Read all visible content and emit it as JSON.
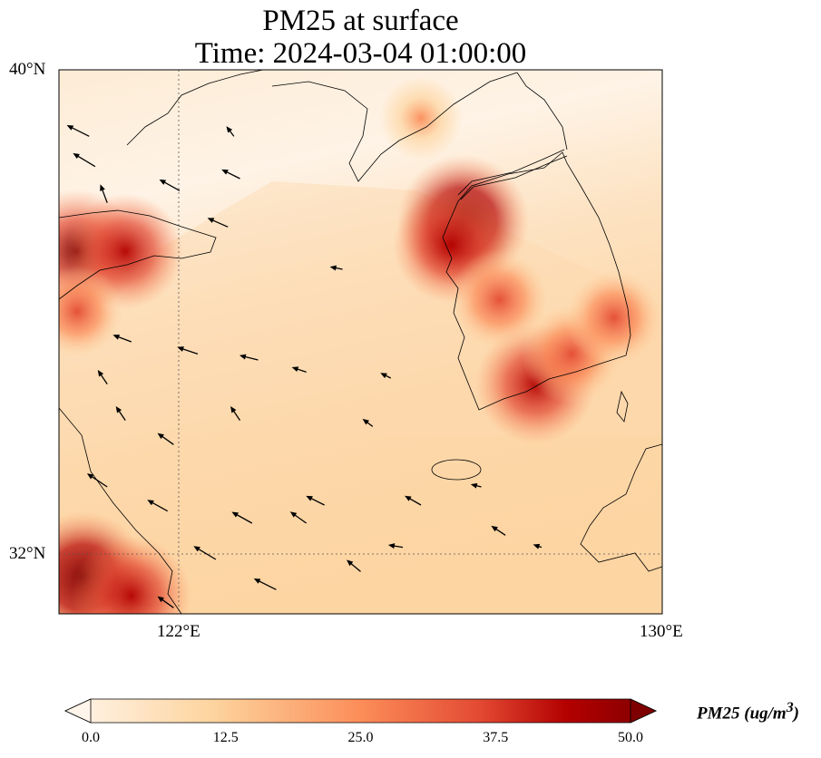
{
  "title": {
    "line1": "PM25 at surface",
    "line2": "Time: 2024-03-04 01:00:00"
  },
  "axes": {
    "lat_labels": [
      {
        "value": 40,
        "text": "40°N"
      },
      {
        "value": 32,
        "text": "32°N"
      }
    ],
    "lon_labels": [
      {
        "value": 122,
        "text": "122°E"
      },
      {
        "value": 130,
        "text": "130°E"
      }
    ],
    "lon_range": [
      120.0,
      130.0
    ],
    "lat_range": [
      31.0,
      40.0
    ]
  },
  "colorbar": {
    "label": "PM25 (ug/m",
    "label_sup": "3",
    "label_close": ")",
    "ticks": [
      "0.0",
      "12.5",
      "25.0",
      "37.5",
      "50.0"
    ],
    "range": [
      0,
      50
    ],
    "extend": "both",
    "colors": [
      "#fff5eb",
      "#fdd49e",
      "#fc8d59",
      "#e34a33",
      "#b30000",
      "#7f0000"
    ]
  },
  "pm25_hotspots": [
    {
      "lon": 126.7,
      "lat": 37.5,
      "value": 50
    },
    {
      "lon": 126.5,
      "lat": 37.1,
      "value": 40
    },
    {
      "lon": 127.9,
      "lat": 34.8,
      "value": 42
    },
    {
      "lon": 128.5,
      "lat": 35.3,
      "value": 30
    },
    {
      "lon": 129.2,
      "lat": 35.9,
      "value": 28
    },
    {
      "lon": 127.3,
      "lat": 36.2,
      "value": 30
    },
    {
      "lon": 120.3,
      "lat": 37.0,
      "value": 45
    },
    {
      "lon": 121.1,
      "lat": 37.0,
      "value": 40
    },
    {
      "lon": 120.4,
      "lat": 31.6,
      "value": 50
    },
    {
      "lon": 121.2,
      "lat": 31.3,
      "value": 42
    },
    {
      "lon": 120.3,
      "lat": 36.0,
      "value": 25
    },
    {
      "lon": 126.0,
      "lat": 39.2,
      "value": 20
    }
  ],
  "wind_vectors": [
    {
      "lon": 120.5,
      "lat": 38.9,
      "u": -1,
      "v": 0.5
    },
    {
      "lon": 120.6,
      "lat": 38.4,
      "u": -1,
      "v": 0.6
    },
    {
      "lon": 122.0,
      "lat": 38.0,
      "u": -0.9,
      "v": 0.5
    },
    {
      "lon": 123.0,
      "lat": 38.2,
      "u": -0.8,
      "v": 0.4
    },
    {
      "lon": 122.8,
      "lat": 37.4,
      "u": -0.9,
      "v": 0.4
    },
    {
      "lon": 124.7,
      "lat": 36.7,
      "u": -0.5,
      "v": 0.1
    },
    {
      "lon": 121.2,
      "lat": 35.5,
      "u": -0.8,
      "v": 0.3
    },
    {
      "lon": 122.3,
      "lat": 35.3,
      "u": -0.9,
      "v": 0.3
    },
    {
      "lon": 123.3,
      "lat": 35.2,
      "u": -0.8,
      "v": 0.2
    },
    {
      "lon": 124.1,
      "lat": 35.0,
      "u": -0.6,
      "v": 0.2
    },
    {
      "lon": 121.1,
      "lat": 34.2,
      "u": -0.4,
      "v": 0.6
    },
    {
      "lon": 123.0,
      "lat": 34.2,
      "u": -0.4,
      "v": 0.6
    },
    {
      "lon": 125.2,
      "lat": 34.1,
      "u": -0.4,
      "v": 0.3
    },
    {
      "lon": 120.8,
      "lat": 33.1,
      "u": -0.9,
      "v": 0.6
    },
    {
      "lon": 121.8,
      "lat": 32.7,
      "u": -0.9,
      "v": 0.5
    },
    {
      "lon": 123.2,
      "lat": 32.5,
      "u": -0.9,
      "v": 0.5
    },
    {
      "lon": 124.1,
      "lat": 32.5,
      "u": -0.7,
      "v": 0.5
    },
    {
      "lon": 122.6,
      "lat": 31.9,
      "u": -1,
      "v": 0.6
    },
    {
      "lon": 123.6,
      "lat": 31.4,
      "u": -1,
      "v": 0.5
    },
    {
      "lon": 124.4,
      "lat": 32.8,
      "u": -0.8,
      "v": 0.4
    },
    {
      "lon": 125.7,
      "lat": 32.1,
      "u": -0.6,
      "v": 0.1
    },
    {
      "lon": 126.0,
      "lat": 32.8,
      "u": -0.7,
      "v": 0.4
    },
    {
      "lon": 127.0,
      "lat": 33.1,
      "u": -0.4,
      "v": 0.1
    },
    {
      "lon": 127.4,
      "lat": 32.3,
      "u": -0.6,
      "v": 0.4
    },
    {
      "lon": 125.0,
      "lat": 31.7,
      "u": -0.6,
      "v": 0.5
    },
    {
      "lon": 121.9,
      "lat": 31.1,
      "u": -0.7,
      "v": 0.5
    },
    {
      "lon": 120.8,
      "lat": 34.8,
      "u": -0.4,
      "v": 0.6
    },
    {
      "lon": 121.9,
      "lat": 33.8,
      "u": -0.7,
      "v": 0.5
    },
    {
      "lon": 125.5,
      "lat": 34.9,
      "u": -0.4,
      "v": 0.2
    },
    {
      "lon": 128.0,
      "lat": 32.1,
      "u": -0.3,
      "v": 0.1
    },
    {
      "lon": 122.9,
      "lat": 38.9,
      "u": -0.3,
      "v": 0.4
    },
    {
      "lon": 120.8,
      "lat": 37.8,
      "u": -0.3,
      "v": 0.8
    }
  ]
}
